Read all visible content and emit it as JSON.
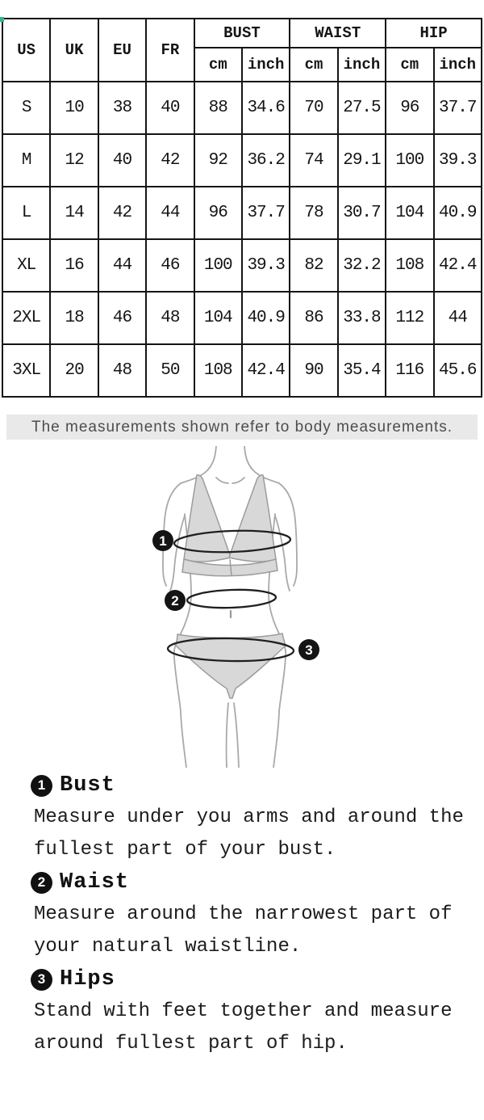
{
  "table": {
    "size_systems": [
      "US",
      "UK",
      "EU",
      "FR"
    ],
    "groups": [
      {
        "label": "BUST",
        "units": [
          "cm",
          "inch"
        ]
      },
      {
        "label": "WAIST",
        "units": [
          "cm",
          "inch"
        ]
      },
      {
        "label": "HIP",
        "units": [
          "cm",
          "inch"
        ]
      }
    ],
    "rows": [
      [
        "S",
        "10",
        "38",
        "40",
        "88",
        "34.6",
        "70",
        "27.5",
        "96",
        "37.7"
      ],
      [
        "M",
        "12",
        "40",
        "42",
        "92",
        "36.2",
        "74",
        "29.1",
        "100",
        "39.3"
      ],
      [
        "L",
        "14",
        "42",
        "44",
        "96",
        "37.7",
        "78",
        "30.7",
        "104",
        "40.9"
      ],
      [
        "XL",
        "16",
        "44",
        "46",
        "100",
        "39.3",
        "82",
        "32.2",
        "108",
        "42.4"
      ],
      [
        "2XL",
        "18",
        "46",
        "48",
        "104",
        "40.9",
        "86",
        "33.8",
        "112",
        "44"
      ],
      [
        "3XL",
        "20",
        "48",
        "50",
        "108",
        "42.4",
        "90",
        "35.4",
        "116",
        "45.6"
      ]
    ]
  },
  "note": {
    "text": "The measurements shown refer to body measurements."
  },
  "figure": {
    "markers": [
      {
        "num": "1",
        "name": "bust"
      },
      {
        "num": "2",
        "name": "waist"
      },
      {
        "num": "3",
        "name": "hips"
      }
    ]
  },
  "guide": {
    "sections": [
      {
        "num": "1",
        "title": "Bust",
        "lines": [
          "Measure under you arms and around the",
          "fullest part of your bust."
        ]
      },
      {
        "num": "2",
        "title": "Waist",
        "lines": [
          "Measure around the narrowest part of",
          "your natural waistline."
        ]
      },
      {
        "num": "3",
        "title": "Hips",
        "lines": [
          "Stand with feet together and measure",
          "around fullest part of hip."
        ]
      }
    ]
  },
  "colors": {
    "table_border": "#151515",
    "note_bg": "#e9e9e9",
    "note_text": "#4d4d4d",
    "figure_outline": "#a9a9a9",
    "figure_fill": "#d8d8d8",
    "measure_ring": "#1f1f1f",
    "marker_bg": "#141414",
    "marker_text": "#ffffff",
    "corner_mark": "#35b393"
  }
}
